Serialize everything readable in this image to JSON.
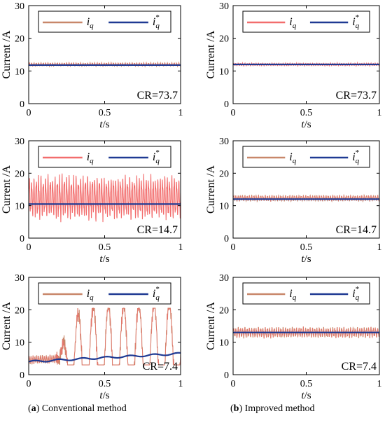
{
  "chart_data": [
    {
      "id": "a1",
      "type": "line",
      "panel": "a",
      "cr": "CR=73.7",
      "ylabel": "Current /A",
      "xlabel": "t/s",
      "xlim": [
        0,
        1
      ],
      "ylim": [
        0,
        30
      ],
      "xticks": [
        "0",
        "0.5",
        "1"
      ],
      "yticks": [
        "0",
        "10",
        "20",
        "30"
      ],
      "legend_location": "top",
      "signal": {
        "model": "ripple",
        "mean": 12,
        "amp": 0.5
      },
      "reference": {
        "model": "constant",
        "value": 11.8
      },
      "series": [
        {
          "name": "i_q",
          "color": "#c8876a"
        },
        {
          "name": "i_q*",
          "color": "#1f3a93"
        }
      ]
    },
    {
      "id": "b1",
      "type": "line",
      "panel": "b",
      "cr": "CR=73.7",
      "ylabel": "Current /A",
      "xlabel": "t/s",
      "xlim": [
        0,
        1
      ],
      "ylim": [
        0,
        30
      ],
      "xticks": [
        "0",
        "0.5",
        "1"
      ],
      "yticks": [
        "0",
        "10",
        "20",
        "30"
      ],
      "legend_location": "top",
      "signal": {
        "model": "ripple",
        "mean": 12,
        "amp": 0.4
      },
      "reference": {
        "model": "constant",
        "value": 12
      },
      "series": [
        {
          "name": "i_q",
          "color": "#f26d6d"
        },
        {
          "name": "i_q*",
          "color": "#1f3a93"
        }
      ]
    },
    {
      "id": "a2",
      "type": "line",
      "panel": "a",
      "cr": "CR=14.7",
      "ylabel": "Current /A",
      "xlabel": "t/s",
      "xlim": [
        0,
        1
      ],
      "ylim": [
        0,
        30
      ],
      "xticks": [
        "0",
        "0.5",
        "1"
      ],
      "yticks": [
        "0",
        "10",
        "20",
        "30"
      ],
      "legend_location": "top",
      "signal": {
        "model": "ripple",
        "mean": 12.5,
        "amp": 6.5
      },
      "reference": {
        "model": "constant",
        "value": 10.5
      },
      "series": [
        {
          "name": "i_q",
          "color": "#f26d6d"
        },
        {
          "name": "i_q*",
          "color": "#1f3a93"
        }
      ]
    },
    {
      "id": "b2",
      "type": "line",
      "panel": "b",
      "cr": "CR=14.7",
      "ylabel": "Current /A",
      "xlabel": "t/s",
      "xlim": [
        0,
        1
      ],
      "ylim": [
        0,
        30
      ],
      "xticks": [
        "0",
        "0.5",
        "1"
      ],
      "yticks": [
        "0",
        "10",
        "20",
        "30"
      ],
      "legend_location": "top",
      "signal": {
        "model": "ripple",
        "mean": 12.3,
        "amp": 0.9
      },
      "reference": {
        "model": "constant",
        "value": 12
      },
      "series": [
        {
          "name": "i_q",
          "color": "#c8876a"
        },
        {
          "name": "i_q*",
          "color": "#1f3a93"
        }
      ]
    },
    {
      "id": "a3",
      "type": "line",
      "panel": "a",
      "cr": "CR=7.4",
      "ylabel": "Current /A",
      "xlabel": "t/s",
      "xlim": [
        0,
        1
      ],
      "ylim": [
        0,
        30
      ],
      "xticks": [
        "0",
        "0.5",
        "1"
      ],
      "yticks": [
        "0",
        "10",
        "20",
        "30"
      ],
      "legend_location": "top",
      "signal": {
        "model": "unstable",
        "mean_start": 4.5,
        "mean_end": 6.5,
        "saturation": 20.5,
        "floor": 3,
        "onset": 0.18
      },
      "reference": {
        "model": "ramp",
        "start": 4,
        "end": 6.5
      },
      "series": [
        {
          "name": "i_q",
          "color": "#c8876a"
        },
        {
          "name": "i_q*",
          "color": "#1f3a93"
        }
      ]
    },
    {
      "id": "b3",
      "type": "line",
      "panel": "b",
      "cr": "CR=7.4",
      "ylabel": "Current /A",
      "xlabel": "t/s",
      "xlim": [
        0,
        1
      ],
      "ylim": [
        0,
        30
      ],
      "xticks": [
        "0",
        "0.5",
        "1"
      ],
      "yticks": [
        "0",
        "10",
        "20",
        "30"
      ],
      "legend_location": "top",
      "signal": {
        "model": "ripple",
        "mean": 13,
        "amp": 1.6
      },
      "reference": {
        "model": "constant",
        "value": 13
      },
      "series": [
        {
          "name": "i_q",
          "color": "#c8876a"
        },
        {
          "name": "i_q*",
          "color": "#1f3a93"
        }
      ]
    }
  ],
  "captions": {
    "a": {
      "letter": "a",
      "text": " Conventional method"
    },
    "b": {
      "letter": "b",
      "text": " Improved method"
    }
  },
  "styles": {
    "fill_color": "#f26d6d",
    "ref_color": "#1f3a93",
    "axis_color": "#000000"
  }
}
